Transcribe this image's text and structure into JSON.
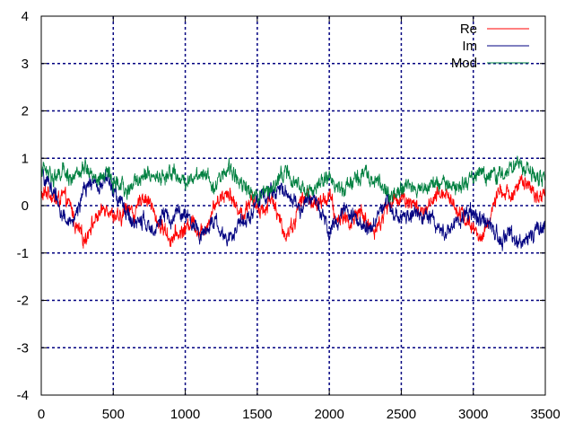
{
  "chart_data": {
    "type": "line",
    "title": "",
    "xlabel": "",
    "ylabel": "",
    "xlim": [
      0,
      3500
    ],
    "ylim": [
      -4,
      4
    ],
    "xticks": [
      0,
      500,
      1000,
      1500,
      2000,
      2500,
      3000,
      3500
    ],
    "yticks": [
      -4,
      -3,
      -2,
      -1,
      0,
      1,
      2,
      3,
      4
    ],
    "grid": true,
    "legend_position": "top-right",
    "samples": 3500,
    "series": [
      {
        "name": "Re",
        "color": "#ff0000",
        "control_points": [
          [
            0,
            0.2
          ],
          [
            50,
            0.3
          ],
          [
            100,
            0.1
          ],
          [
            150,
            0.2
          ],
          [
            200,
            0.0
          ],
          [
            250,
            -0.5
          ],
          [
            300,
            -0.7
          ],
          [
            350,
            -0.4
          ],
          [
            400,
            -0.2
          ],
          [
            450,
            0.0
          ],
          [
            500,
            -0.2
          ],
          [
            550,
            -0.3
          ],
          [
            600,
            0.0
          ],
          [
            650,
            -0.2
          ],
          [
            700,
            0.2
          ],
          [
            750,
            0.1
          ],
          [
            800,
            -0.3
          ],
          [
            850,
            -0.5
          ],
          [
            900,
            -0.7
          ],
          [
            950,
            -0.6
          ],
          [
            1000,
            -0.5
          ],
          [
            1050,
            -0.3
          ],
          [
            1100,
            -0.6
          ],
          [
            1150,
            -0.4
          ],
          [
            1200,
            0.0
          ],
          [
            1250,
            0.2
          ],
          [
            1300,
            0.3
          ],
          [
            1350,
            0.0
          ],
          [
            1400,
            -0.2
          ],
          [
            1450,
            0.1
          ],
          [
            1500,
            0.0
          ],
          [
            1550,
            -0.1
          ],
          [
            1600,
            0.2
          ],
          [
            1650,
            -0.3
          ],
          [
            1700,
            -0.6
          ],
          [
            1750,
            -0.4
          ],
          [
            1800,
            0.1
          ],
          [
            1850,
            0.2
          ],
          [
            1900,
            0.0
          ],
          [
            1950,
            0.1
          ],
          [
            2000,
            0.2
          ],
          [
            2050,
            -0.3
          ],
          [
            2100,
            -0.2
          ],
          [
            2150,
            -0.4
          ],
          [
            2200,
            -0.1
          ],
          [
            2250,
            -0.3
          ],
          [
            2300,
            -0.5
          ],
          [
            2350,
            -0.4
          ],
          [
            2400,
            0.0
          ],
          [
            2450,
            0.1
          ],
          [
            2500,
            0.2
          ],
          [
            2550,
            0.1
          ],
          [
            2600,
            0.0
          ],
          [
            2650,
            -0.2
          ],
          [
            2700,
            0.0
          ],
          [
            2750,
            0.2
          ],
          [
            2800,
            0.3
          ],
          [
            2850,
            0.1
          ],
          [
            2900,
            -0.1
          ],
          [
            2950,
            -0.3
          ],
          [
            3000,
            -0.5
          ],
          [
            3050,
            -0.7
          ],
          [
            3100,
            -0.4
          ],
          [
            3150,
            0.1
          ],
          [
            3200,
            0.3
          ],
          [
            3250,
            0.2
          ],
          [
            3300,
            0.4
          ],
          [
            3350,
            0.5
          ],
          [
            3400,
            0.3
          ],
          [
            3450,
            0.2
          ],
          [
            3500,
            0.3
          ]
        ]
      },
      {
        "name": "Im",
        "color": "#000080",
        "control_points": [
          [
            0,
            0.6
          ],
          [
            50,
            0.5
          ],
          [
            100,
            0.2
          ],
          [
            150,
            -0.2
          ],
          [
            200,
            -0.4
          ],
          [
            250,
            -0.1
          ],
          [
            300,
            0.3
          ],
          [
            350,
            0.5
          ],
          [
            400,
            0.4
          ],
          [
            450,
            0.6
          ],
          [
            500,
            0.3
          ],
          [
            550,
            0.1
          ],
          [
            600,
            -0.2
          ],
          [
            650,
            -0.4
          ],
          [
            700,
            -0.3
          ],
          [
            750,
            -0.5
          ],
          [
            800,
            -0.4
          ],
          [
            850,
            -0.2
          ],
          [
            900,
            -0.3
          ],
          [
            950,
            -0.1
          ],
          [
            1000,
            -0.2
          ],
          [
            1050,
            -0.4
          ],
          [
            1100,
            -0.6
          ],
          [
            1150,
            -0.5
          ],
          [
            1200,
            -0.3
          ],
          [
            1250,
            -0.6
          ],
          [
            1300,
            -0.7
          ],
          [
            1350,
            -0.5
          ],
          [
            1400,
            -0.3
          ],
          [
            1450,
            -0.2
          ],
          [
            1500,
            0.1
          ],
          [
            1550,
            0.2
          ],
          [
            1600,
            0.3
          ],
          [
            1650,
            0.4
          ],
          [
            1700,
            0.3
          ],
          [
            1750,
            0.1
          ],
          [
            1800,
            -0.1
          ],
          [
            1850,
            0.1
          ],
          [
            1900,
            0.2
          ],
          [
            1950,
            -0.1
          ],
          [
            2000,
            -0.6
          ],
          [
            2050,
            -0.3
          ],
          [
            2100,
            -0.1
          ],
          [
            2150,
            -0.2
          ],
          [
            2200,
            -0.3
          ],
          [
            2250,
            -0.5
          ],
          [
            2300,
            -0.4
          ],
          [
            2350,
            -0.1
          ],
          [
            2400,
            0.1
          ],
          [
            2450,
            -0.1
          ],
          [
            2500,
            -0.3
          ],
          [
            2550,
            -0.2
          ],
          [
            2600,
            -0.1
          ],
          [
            2650,
            -0.3
          ],
          [
            2700,
            -0.2
          ],
          [
            2750,
            -0.4
          ],
          [
            2800,
            -0.6
          ],
          [
            2850,
            -0.5
          ],
          [
            2900,
            -0.3
          ],
          [
            2950,
            -0.1
          ],
          [
            3000,
            -0.2
          ],
          [
            3050,
            -0.3
          ],
          [
            3100,
            -0.4
          ],
          [
            3150,
            -0.6
          ],
          [
            3200,
            -0.7
          ],
          [
            3250,
            -0.6
          ],
          [
            3300,
            -0.8
          ],
          [
            3350,
            -0.7
          ],
          [
            3400,
            -0.6
          ],
          [
            3450,
            -0.5
          ],
          [
            3500,
            -0.4
          ]
        ]
      },
      {
        "name": "Mod",
        "color": "#008040",
        "control_points": [
          [
            0,
            0.8
          ],
          [
            50,
            0.7
          ],
          [
            100,
            0.6
          ],
          [
            150,
            0.7
          ],
          [
            200,
            0.6
          ],
          [
            250,
            0.6
          ],
          [
            300,
            0.8
          ],
          [
            350,
            0.7
          ],
          [
            400,
            0.5
          ],
          [
            450,
            0.7
          ],
          [
            500,
            0.5
          ],
          [
            550,
            0.4
          ],
          [
            600,
            0.3
          ],
          [
            650,
            0.5
          ],
          [
            700,
            0.6
          ],
          [
            750,
            0.7
          ],
          [
            800,
            0.6
          ],
          [
            850,
            0.6
          ],
          [
            900,
            0.7
          ],
          [
            950,
            0.6
          ],
          [
            1000,
            0.5
          ],
          [
            1050,
            0.6
          ],
          [
            1100,
            0.7
          ],
          [
            1150,
            0.7
          ],
          [
            1200,
            0.4
          ],
          [
            1250,
            0.6
          ],
          [
            1300,
            0.8
          ],
          [
            1350,
            0.6
          ],
          [
            1400,
            0.5
          ],
          [
            1450,
            0.3
          ],
          [
            1500,
            0.2
          ],
          [
            1550,
            0.3
          ],
          [
            1600,
            0.4
          ],
          [
            1650,
            0.6
          ],
          [
            1700,
            0.7
          ],
          [
            1750,
            0.5
          ],
          [
            1800,
            0.4
          ],
          [
            1850,
            0.3
          ],
          [
            1900,
            0.4
          ],
          [
            1950,
            0.5
          ],
          [
            2000,
            0.6
          ],
          [
            2050,
            0.4
          ],
          [
            2100,
            0.3
          ],
          [
            2150,
            0.5
          ],
          [
            2200,
            0.6
          ],
          [
            2250,
            0.7
          ],
          [
            2300,
            0.6
          ],
          [
            2350,
            0.5
          ],
          [
            2400,
            0.3
          ],
          [
            2450,
            0.2
          ],
          [
            2500,
            0.4
          ],
          [
            2550,
            0.4
          ],
          [
            2600,
            0.3
          ],
          [
            2650,
            0.4
          ],
          [
            2700,
            0.5
          ],
          [
            2750,
            0.4
          ],
          [
            2800,
            0.5
          ],
          [
            2850,
            0.4
          ],
          [
            2900,
            0.4
          ],
          [
            2950,
            0.5
          ],
          [
            3000,
            0.6
          ],
          [
            3050,
            0.7
          ],
          [
            3100,
            0.6
          ],
          [
            3150,
            0.6
          ],
          [
            3200,
            0.7
          ],
          [
            3250,
            0.8
          ],
          [
            3300,
            0.9
          ],
          [
            3350,
            0.8
          ],
          [
            3400,
            0.7
          ],
          [
            3450,
            0.6
          ],
          [
            3500,
            0.5
          ]
        ]
      }
    ]
  }
}
